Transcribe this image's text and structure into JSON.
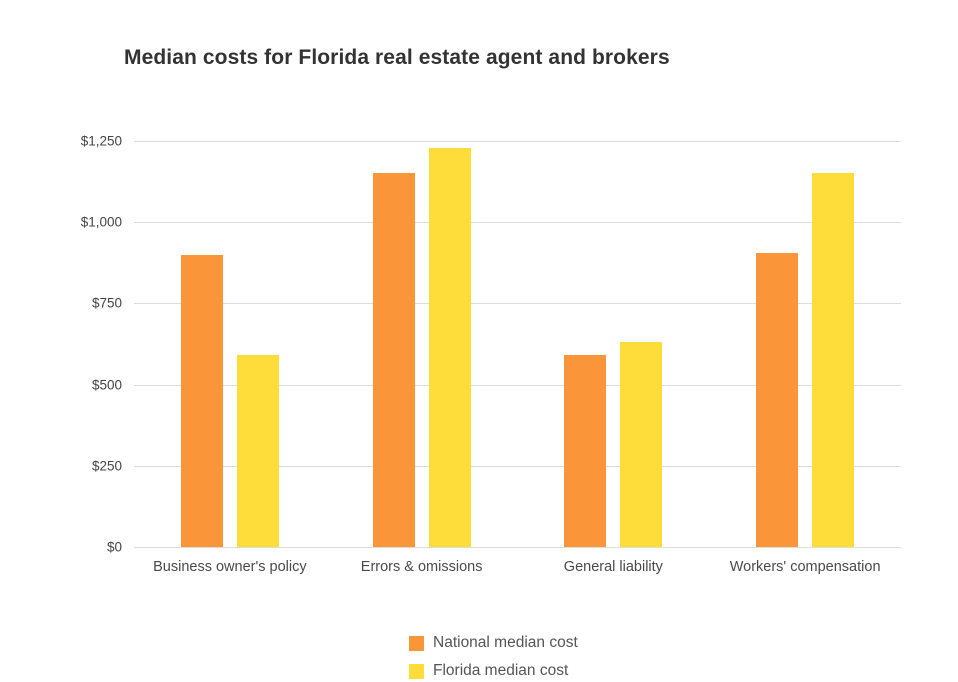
{
  "title": "Median costs for Florida real estate agent and brokers",
  "chart_data": {
    "type": "bar",
    "title": "Median costs for Florida real estate agent and brokers",
    "categories": [
      "Business owner's policy",
      "Errors & omissions",
      "General liability",
      "Workers' compensation"
    ],
    "series": [
      {
        "name": "National median cost",
        "color": "#FA9639",
        "values": [
          900,
          1150,
          590,
          905
        ]
      },
      {
        "name": "Florida median cost",
        "color": "#FEDC3A",
        "values": [
          590,
          1230,
          630,
          1150
        ]
      }
    ],
    "xlabel": "",
    "ylabel": "",
    "ylim": [
      0,
      1250
    ],
    "yticks": [
      0,
      250,
      500,
      750,
      1000,
      1250
    ],
    "ytick_labels": [
      "$0",
      "$250",
      "$500",
      "$750",
      "$1,000",
      "$1,250"
    ],
    "grid": true,
    "gridline_color": "#dddddd",
    "background_color": "#ffffff",
    "legend_position": "bottom"
  }
}
